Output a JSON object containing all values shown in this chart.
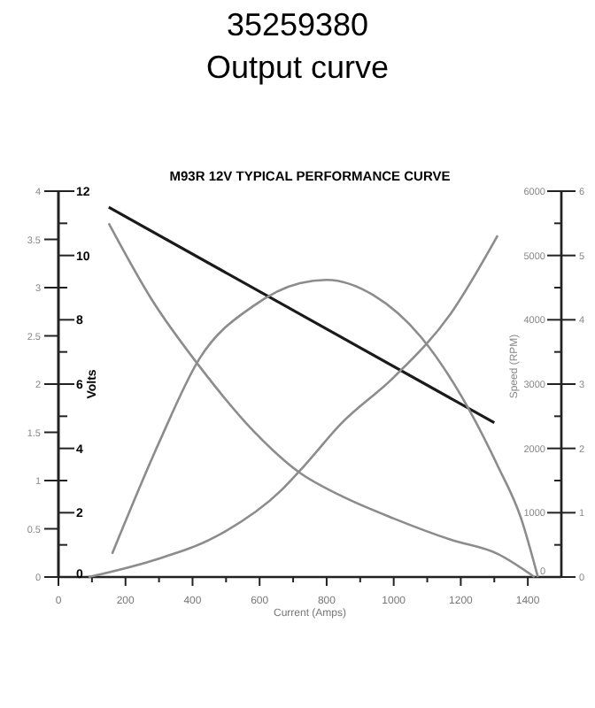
{
  "chart_data": [
    {
      "type": "line",
      "title": "35259380",
      "subtitle": "Output curve",
      "annotations": [
        "M93R 12V TYPICAL PERFORMANCE CURVE"
      ],
      "xlabel": "Current (Amps)",
      "ylabel": "Volts",
      "y2label": "Speed (RPM)",
      "xlim": [
        0,
        1500
      ],
      "xticks": [
        0,
        {
          "value": 100,
          "label": null
        },
        200,
        {
          "value": 300,
          "label": null
        },
        400,
        {
          "value": 500,
          "label": null
        },
        600,
        {
          "value": 700,
          "label": null
        },
        800,
        {
          "value": 900,
          "label": null
        },
        1000,
        {
          "value": 1100,
          "label": null
        },
        1200,
        {
          "value": 1300,
          "label": null
        },
        1400
      ],
      "ylim": [
        0,
        12
      ],
      "yticks": [
        0,
        {
          "value": 1,
          "label": null
        },
        2,
        {
          "value": 3,
          "label": null
        },
        4,
        {
          "value": 5,
          "label": null
        },
        6,
        {
          "value": 7,
          "label": null
        },
        8,
        {
          "value": 9,
          "label": null
        },
        10,
        {
          "value": 11,
          "label": null
        },
        12
      ],
      "y2lim": [
        0,
        6000
      ],
      "y2ticks": [
        0,
        {
          "value": 500,
          "label": null
        },
        1000,
        {
          "value": 1500,
          "label": null
        },
        2000,
        {
          "value": 2500,
          "label": null
        },
        3000,
        {
          "value": 3500,
          "label": null
        },
        4000,
        {
          "value": 4500,
          "label": null
        },
        5000,
        {
          "value": 5500,
          "label": null
        },
        6000
      ],
      "y3lim": [
        0,
        4
      ],
      "y3ticks": [
        0,
        0.5,
        1,
        1.5,
        2,
        2.5,
        3,
        3.5,
        4
      ],
      "line_style": "solid",
      "series": [
        {
          "axis": "y",
          "color": "#1a1a1a",
          "x": [
            150,
            1300
          ],
          "values": [
            11.5,
            4.8
          ]
        },
        {
          "axis": "y2",
          "color": "#8c8c8c",
          "x": [
            150,
            280,
            420,
            580,
            720,
            840,
            1000,
            1170,
            1310,
            1420
          ],
          "values": [
            5500,
            4300,
            3280,
            2280,
            1620,
            1270,
            910,
            580,
            360,
            0
          ]
        },
        {
          "axis": "y3",
          "color": "#8c8c8c",
          "x": [
            90,
            280,
            470,
            665,
            735,
            840,
            1000,
            1170,
            1310
          ],
          "values": [
            0,
            0.17,
            0.42,
            0.9,
            1.16,
            1.58,
            2.07,
            2.73,
            3.54
          ]
        }
      ]
    },
    {
      "type": "line",
      "xlim": [
        0,
        1500
      ],
      "ylim": [
        0,
        6
      ],
      "yticks": [
        0,
        1,
        2,
        3,
        4,
        5,
        6
      ],
      "tick_labels": "y",
      "line_style": "solid",
      "series": [
        {
          "color": "#8c8c8c",
          "x": [
            160,
            300,
            420,
            580,
            720,
            800,
            940,
            1080,
            1200,
            1310,
            1380,
            1430
          ],
          "values": [
            0.36,
            2.09,
            3.39,
            4.21,
            4.57,
            4.62,
            4.38,
            3.74,
            2.83,
            1.73,
            0.91,
            0
          ]
        }
      ]
    }
  ]
}
